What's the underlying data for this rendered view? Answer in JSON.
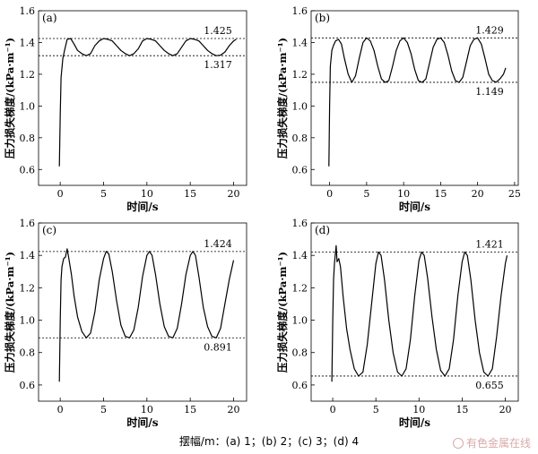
{
  "figure": {
    "caption": "摆幅/m：(a) 1；(b) 2；(c) 3；(d) 4",
    "watermark": "有色金属在线",
    "watermark_icon": "watermark-logo-icon",
    "line_color": "#000000"
  },
  "chart_data": [
    {
      "type": "line",
      "panel_label": "(a)",
      "xlabel": "时间/s",
      "ylabel": "压力损失梯度/(kPa·m⁻¹)",
      "xlim": [
        -2.5,
        21.5
      ],
      "ylim": [
        0.5,
        1.6
      ],
      "xticks": [
        0,
        5,
        10,
        15,
        20
      ],
      "yticks": [
        0.6,
        0.8,
        1.0,
        1.2,
        1.4,
        1.6
      ],
      "ytick_labels": [
        "0.6",
        "0.8",
        "1.0",
        "1.2",
        "1.4",
        "1.6"
      ],
      "grid": false,
      "reference_lines": [
        {
          "value": 1.425,
          "label": "1.425",
          "style": "dashed",
          "label_position": "above"
        },
        {
          "value": 1.317,
          "label": "1.317",
          "style": "dashed",
          "label_position": "below"
        }
      ],
      "series": [
        {
          "x": [
            -0.1,
            0.0,
            0.1,
            0.3,
            0.5,
            0.8,
            1.2,
            1.6,
            2.0,
            2.5,
            3.0,
            3.5,
            4.0,
            4.5,
            5.0,
            5.5,
            6.0,
            6.5,
            7.0,
            7.5,
            8.0,
            8.5,
            9.0,
            9.5,
            10.0,
            10.5,
            11.0,
            11.5,
            12.0,
            12.5,
            13.0,
            13.5,
            14.0,
            14.5,
            15.0,
            15.5,
            16.0,
            16.5,
            17.0,
            17.5,
            18.0,
            18.5,
            19.0,
            19.5,
            20.0,
            20.3
          ],
          "y": [
            0.62,
            0.95,
            1.18,
            1.3,
            1.35,
            1.42,
            1.425,
            1.39,
            1.35,
            1.33,
            1.317,
            1.33,
            1.38,
            1.41,
            1.425,
            1.42,
            1.41,
            1.38,
            1.35,
            1.33,
            1.317,
            1.33,
            1.36,
            1.41,
            1.425,
            1.42,
            1.41,
            1.38,
            1.35,
            1.33,
            1.317,
            1.33,
            1.37,
            1.41,
            1.425,
            1.42,
            1.41,
            1.38,
            1.35,
            1.33,
            1.317,
            1.32,
            1.34,
            1.38,
            1.41,
            1.42
          ]
        }
      ]
    },
    {
      "type": "line",
      "panel_label": "(b)",
      "xlabel": "时间/s",
      "ylabel": "压力损失梯度/(kPa·m⁻¹)",
      "xlim": [
        -2.5,
        25.5
      ],
      "ylim": [
        0.5,
        1.6
      ],
      "xticks": [
        0,
        5,
        10,
        15,
        20,
        25
      ],
      "yticks": [
        0.6,
        0.8,
        1.0,
        1.2,
        1.4,
        1.6
      ],
      "ytick_labels": [
        "0.6",
        "0.8",
        "1.0",
        "1.2",
        "1.4",
        "1.6"
      ],
      "grid": false,
      "reference_lines": [
        {
          "value": 1.429,
          "label": "1.429",
          "style": "dashed",
          "label_position": "above"
        },
        {
          "value": 1.149,
          "label": "1.149",
          "style": "dashed",
          "label_position": "below"
        }
      ],
      "series": [
        {
          "x": [
            -0.1,
            0.0,
            0.1,
            0.3,
            0.5,
            0.8,
            1.2,
            1.6,
            2.0,
            2.5,
            3.0,
            3.5,
            4.0,
            4.5,
            5.0,
            5.5,
            6.0,
            6.5,
            7.0,
            7.5,
            8.0,
            8.5,
            9.0,
            9.5,
            10.0,
            10.5,
            11.0,
            11.5,
            12.0,
            12.5,
            13.0,
            13.5,
            14.0,
            14.5,
            15.0,
            15.5,
            16.0,
            16.5,
            17.0,
            17.5,
            18.0,
            18.5,
            19.0,
            19.5,
            20.0,
            20.5,
            21.0,
            21.5,
            22.0,
            22.5,
            23.0,
            23.5,
            23.8
          ],
          "y": [
            0.62,
            1.0,
            1.25,
            1.35,
            1.38,
            1.41,
            1.42,
            1.39,
            1.3,
            1.2,
            1.149,
            1.19,
            1.3,
            1.4,
            1.429,
            1.41,
            1.35,
            1.25,
            1.17,
            1.149,
            1.16,
            1.25,
            1.35,
            1.41,
            1.429,
            1.4,
            1.33,
            1.23,
            1.16,
            1.149,
            1.17,
            1.27,
            1.37,
            1.42,
            1.429,
            1.4,
            1.32,
            1.22,
            1.16,
            1.149,
            1.18,
            1.28,
            1.38,
            1.42,
            1.429,
            1.39,
            1.3,
            1.2,
            1.16,
            1.15,
            1.17,
            1.2,
            1.24
          ]
        }
      ]
    },
    {
      "type": "line",
      "panel_label": "(c)",
      "xlabel": "时间/s",
      "ylabel": "压力损失梯度/(kPa·m⁻¹)",
      "xlim": [
        -2.5,
        21.5
      ],
      "ylim": [
        0.5,
        1.6
      ],
      "xticks": [
        0,
        5,
        10,
        15,
        20
      ],
      "yticks": [
        0.6,
        0.8,
        1.0,
        1.2,
        1.4,
        1.6
      ],
      "ytick_labels": [
        "0.6",
        "0.8",
        "1.0",
        "1.2",
        "1.4",
        "1.6"
      ],
      "grid": false,
      "reference_lines": [
        {
          "value": 1.424,
          "label": "1.424",
          "style": "dashed",
          "label_position": "above"
        },
        {
          "value": 0.891,
          "label": "0.891",
          "style": "dashed",
          "label_position": "below"
        }
      ],
      "series": [
        {
          "x": [
            -0.1,
            0.0,
            0.1,
            0.2,
            0.4,
            0.6,
            0.8,
            1.0,
            1.3,
            1.6,
            2.0,
            2.5,
            3.0,
            3.5,
            4.0,
            4.5,
            5.0,
            5.3,
            5.6,
            6.0,
            6.5,
            7.0,
            7.5,
            8.0,
            8.5,
            9.0,
            9.5,
            10.0,
            10.3,
            10.6,
            11.0,
            11.5,
            12.0,
            12.5,
            13.0,
            13.5,
            14.0,
            14.5,
            15.0,
            15.3,
            15.6,
            16.0,
            16.5,
            17.0,
            17.5,
            18.0,
            18.5,
            19.0,
            19.5,
            20.0
          ],
          "y": [
            0.62,
            1.0,
            1.25,
            1.33,
            1.38,
            1.39,
            1.44,
            1.38,
            1.28,
            1.15,
            1.02,
            0.93,
            0.891,
            0.92,
            1.05,
            1.25,
            1.38,
            1.424,
            1.41,
            1.3,
            1.12,
            0.97,
            0.9,
            0.891,
            0.94,
            1.08,
            1.27,
            1.4,
            1.424,
            1.4,
            1.28,
            1.1,
            0.96,
            0.9,
            0.891,
            0.95,
            1.1,
            1.28,
            1.4,
            1.424,
            1.4,
            1.27,
            1.08,
            0.96,
            0.9,
            0.891,
            0.95,
            1.1,
            1.25,
            1.37
          ]
        }
      ]
    },
    {
      "type": "line",
      "panel_label": "(d)",
      "xlabel": "时间/s",
      "ylabel": "压力损失梯度/(kPa·m⁻¹)",
      "xlim": [
        -2.5,
        21.5
      ],
      "ylim": [
        0.5,
        1.6
      ],
      "xticks": [
        0,
        5,
        10,
        15,
        20
      ],
      "yticks": [
        0.6,
        0.8,
        1.0,
        1.2,
        1.4,
        1.6
      ],
      "ytick_labels": [
        "0.6",
        "0.8",
        "1.0",
        "1.2",
        "1.4",
        "1.6"
      ],
      "grid": false,
      "reference_lines": [
        {
          "value": 1.421,
          "label": "1.421",
          "style": "dashed",
          "label_position": "above"
        },
        {
          "value": 0.655,
          "label": "0.655",
          "style": "dashed",
          "label_position": "below"
        }
      ],
      "series": [
        {
          "x": [
            -0.1,
            0.0,
            0.1,
            0.2,
            0.4,
            0.5,
            0.7,
            0.9,
            1.2,
            1.6,
            2.0,
            2.5,
            3.0,
            3.5,
            4.0,
            4.5,
            5.0,
            5.3,
            5.6,
            6.0,
            6.5,
            7.0,
            7.5,
            8.0,
            8.5,
            9.0,
            9.5,
            10.0,
            10.3,
            10.6,
            11.0,
            11.5,
            12.0,
            12.5,
            13.0,
            13.5,
            14.0,
            14.5,
            15.0,
            15.3,
            15.6,
            16.0,
            16.5,
            17.0,
            17.5,
            18.0,
            18.5,
            19.0,
            19.5,
            20.0,
            20.2
          ],
          "y": [
            0.62,
            1.0,
            1.25,
            1.35,
            1.46,
            1.36,
            1.38,
            1.33,
            1.15,
            0.95,
            0.82,
            0.7,
            0.655,
            0.68,
            0.85,
            1.1,
            1.35,
            1.421,
            1.4,
            1.25,
            1.0,
            0.8,
            0.68,
            0.655,
            0.7,
            0.88,
            1.15,
            1.37,
            1.421,
            1.4,
            1.26,
            1.02,
            0.82,
            0.69,
            0.655,
            0.7,
            0.88,
            1.15,
            1.36,
            1.421,
            1.4,
            1.25,
            1.0,
            0.8,
            0.68,
            0.655,
            0.7,
            0.9,
            1.15,
            1.35,
            1.4
          ]
        }
      ]
    }
  ]
}
